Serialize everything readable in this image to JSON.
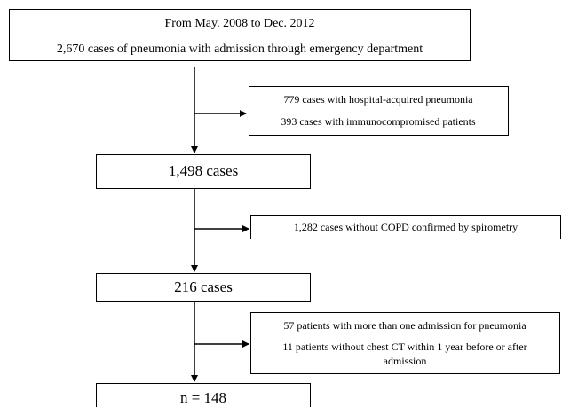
{
  "nodes": [
    {
      "lines": [
        "From May. 2008 to Dec. 2012",
        "2,670 cases of pneumonia with admission through emergency department"
      ]
    },
    {
      "label": "1,498 cases"
    },
    {
      "label": "216 cases"
    },
    {
      "label": "n = 148"
    }
  ],
  "exclusions": [
    {
      "items": [
        {
          "lines": [
            "779 cases with hospital-acquired pneumonia"
          ]
        },
        {
          "lines": [
            "393 cases with immunocompromised patients"
          ]
        }
      ]
    },
    {
      "items": [
        {
          "lines": [
            "1,282 cases without COPD confirmed by spirometry"
          ]
        }
      ]
    },
    {
      "items": [
        {
          "lines": [
            "57 patients with more than one admission for pneumonia"
          ]
        },
        {
          "lines": [
            "11 patients without chest CT within 1 year before or after",
            "admission"
          ]
        }
      ]
    }
  ]
}
